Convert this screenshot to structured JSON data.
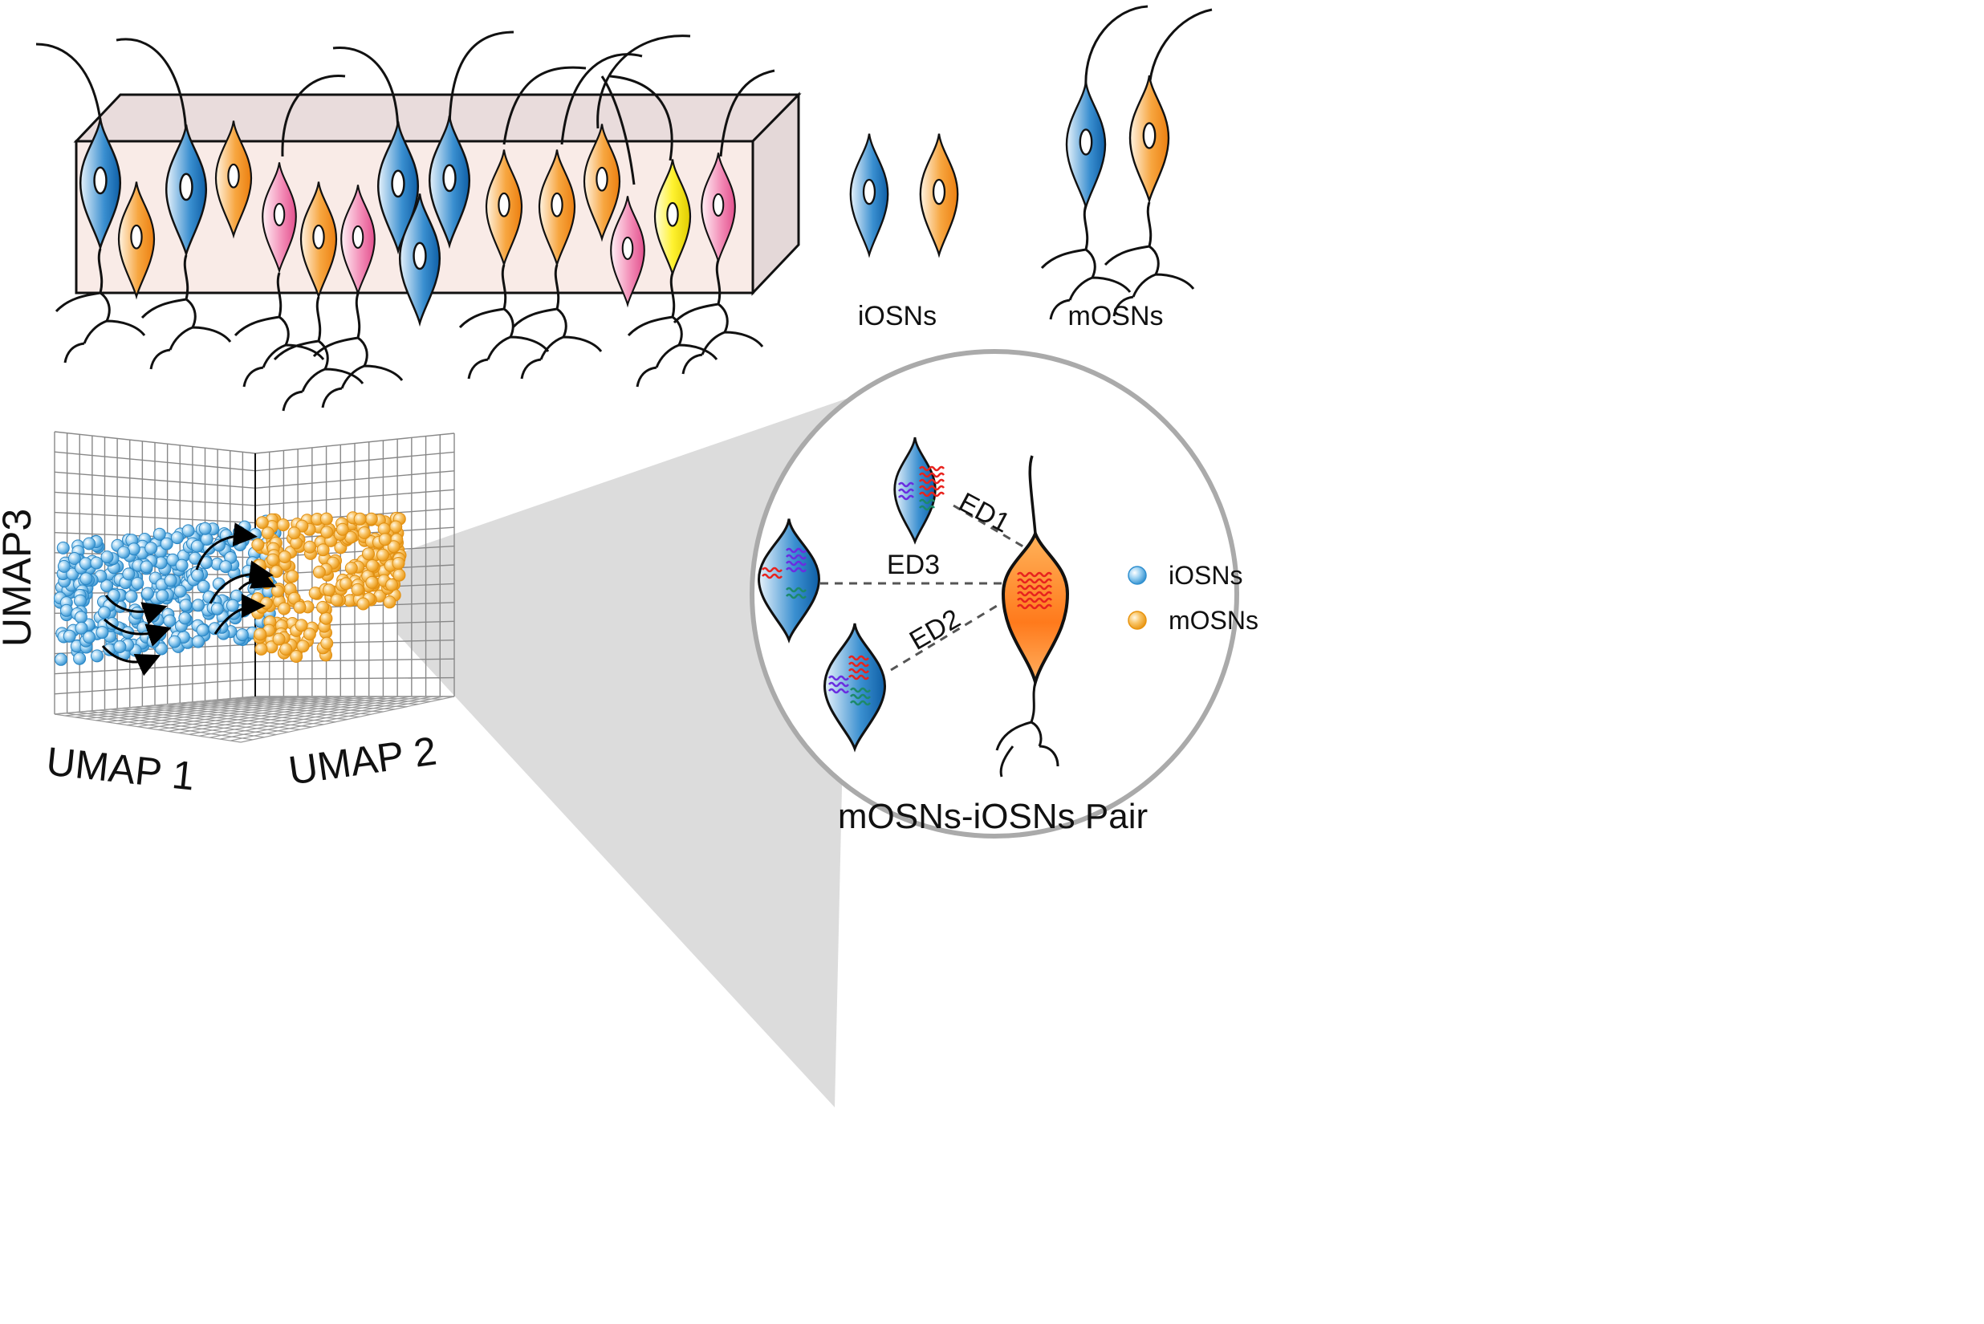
{
  "top_panel": {
    "label_iosns": "iOSNs",
    "label_mosns": "mOSNs"
  },
  "umap": {
    "axis_x": "UMAP 1",
    "axis_y": "UMAP 2",
    "axis_z": "UMAP3"
  },
  "zoom": {
    "ed1": "ED1",
    "ed2": "ED2",
    "ed3": "ED3",
    "caption": "mOSNs-iOSNs Pair"
  },
  "legend": {
    "items": [
      {
        "label": "iOSNs",
        "color": "#4aa6dc"
      },
      {
        "label": "mOSNs",
        "color": "#f5a93a"
      }
    ]
  },
  "colors": {
    "blue_cell": "#1f74b8",
    "orange_cell": "#f08a1e",
    "pink_cell": "#e8609a",
    "yellow_cell": "#e8d800",
    "tissue_front": "#f7e8e4",
    "tissue_top": "#e8dcdc",
    "zoom_cone": "#d6d6d6",
    "transcript_red": "#e8231e",
    "transcript_purple": "#6a2ee0",
    "transcript_green": "#1d8a6a"
  }
}
